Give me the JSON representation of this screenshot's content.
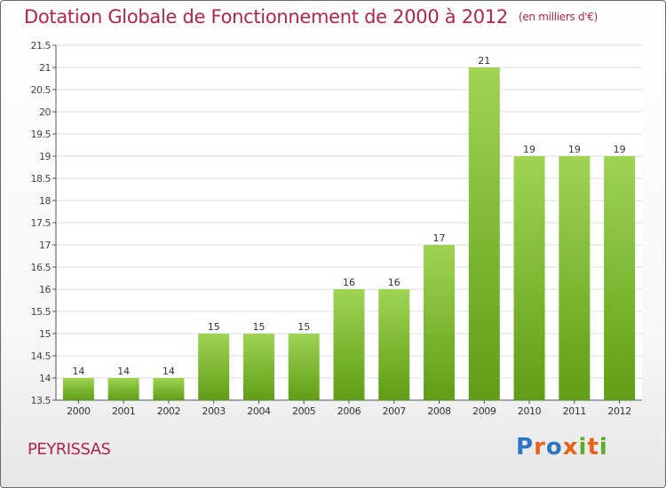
{
  "header": {
    "title": "Dotation Globale de Fonctionnement de 2000 à 2012",
    "unit": "(en milliers d'€)"
  },
  "commune": "PEYRISSAS",
  "logo": {
    "letters": [
      "P",
      "r",
      "o",
      "x",
      "i",
      "t",
      "i"
    ]
  },
  "colors": {
    "bar_light": "#9fd453",
    "bar_dark": "#5f9e16",
    "title": "#b2234d",
    "grid": "#dcdcdc"
  },
  "chart_data": {
    "type": "bar",
    "title": "Dotation Globale de Fonctionnement de 2000 à 2012",
    "subtitle": "(en milliers d'€)",
    "categories": [
      "2000",
      "2001",
      "2002",
      "2003",
      "2004",
      "2005",
      "2006",
      "2007",
      "2008",
      "2009",
      "2010",
      "2011",
      "2012"
    ],
    "values": [
      14,
      14,
      14,
      15,
      15,
      15,
      16,
      16,
      17,
      21,
      19,
      19,
      19
    ],
    "ylim": [
      13.5,
      21.5
    ],
    "yticks": [
      "13.5",
      "14",
      "14.5",
      "15",
      "15.5",
      "16",
      "16.5",
      "17",
      "17.5",
      "18",
      "18.5",
      "19",
      "19.5",
      "20",
      "20.5",
      "21",
      "21.5"
    ],
    "grid": true,
    "legend": "none"
  }
}
